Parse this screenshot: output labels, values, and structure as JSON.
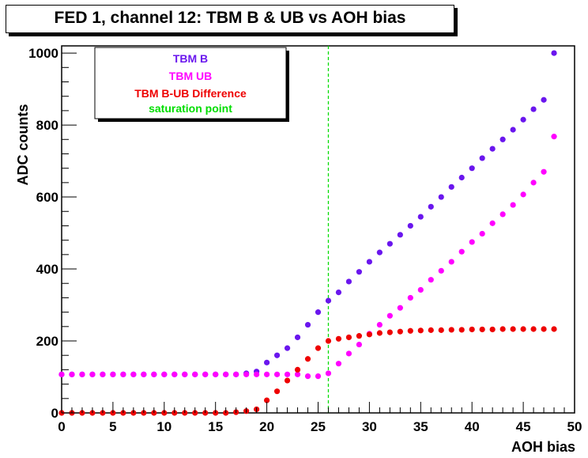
{
  "chart_data": {
    "type": "scatter",
    "title": "FED 1, channel 12: TBM B & UB vs AOH bias",
    "xlabel": "AOH bias",
    "ylabel": "ADC counts",
    "xlim": [
      0,
      50
    ],
    "ylim": [
      0,
      1020
    ],
    "x_ticks": [
      0,
      5,
      10,
      15,
      20,
      25,
      30,
      35,
      40,
      45,
      50
    ],
    "y_ticks": [
      0,
      200,
      400,
      600,
      800,
      1000
    ],
    "grid": false,
    "legend_position": "top-left",
    "x": [
      0,
      1,
      2,
      3,
      4,
      5,
      6,
      7,
      8,
      9,
      10,
      11,
      12,
      13,
      14,
      15,
      16,
      17,
      18,
      19,
      20,
      21,
      22,
      23,
      24,
      25,
      26,
      27,
      28,
      29,
      30,
      31,
      32,
      33,
      34,
      35,
      36,
      37,
      38,
      39,
      40,
      41,
      42,
      43,
      44,
      45,
      46,
      47,
      48
    ],
    "series": [
      {
        "name": "TBM B",
        "color": "#6a16ee",
        "values": [
          107,
          107,
          107,
          107,
          107,
          107,
          107,
          107,
          107,
          107,
          107,
          107,
          107,
          107,
          107,
          107,
          107,
          107,
          110,
          115,
          140,
          160,
          180,
          210,
          245,
          280,
          312,
          335,
          365,
          392,
          420,
          446,
          470,
          495,
          520,
          545,
          573,
          600,
          628,
          654,
          680,
          708,
          734,
          760,
          787,
          815,
          844,
          870,
          1000
        ]
      },
      {
        "name": "TBM UB",
        "color": "#ff00ff",
        "values": [
          107,
          107,
          107,
          107,
          107,
          107,
          107,
          107,
          107,
          107,
          107,
          107,
          107,
          107,
          107,
          107,
          107,
          107,
          107,
          107,
          107,
          107,
          107,
          107,
          102,
          102,
          110,
          137,
          165,
          190,
          220,
          245,
          270,
          292,
          320,
          342,
          370,
          395,
          420,
          448,
          475,
          498,
          527,
          552,
          578,
          607,
          640,
          670,
          768
        ]
      },
      {
        "name": "TBM B-UB Difference",
        "color": "#ee0000",
        "values": [
          0,
          0,
          0,
          0,
          0,
          0,
          0,
          0,
          0,
          0,
          0,
          0,
          0,
          0,
          0,
          0,
          0,
          2,
          5,
          10,
          35,
          60,
          90,
          120,
          150,
          180,
          200,
          206,
          210,
          214,
          218,
          222,
          224,
          226,
          228,
          229,
          230,
          230,
          231,
          231,
          232,
          232,
          232,
          233,
          233,
          233,
          233,
          233,
          233
        ]
      }
    ],
    "reference_lines": [
      {
        "name": "saturation point",
        "axis": "x",
        "value": 26,
        "color": "#00dd00",
        "style": "dashed"
      }
    ]
  }
}
